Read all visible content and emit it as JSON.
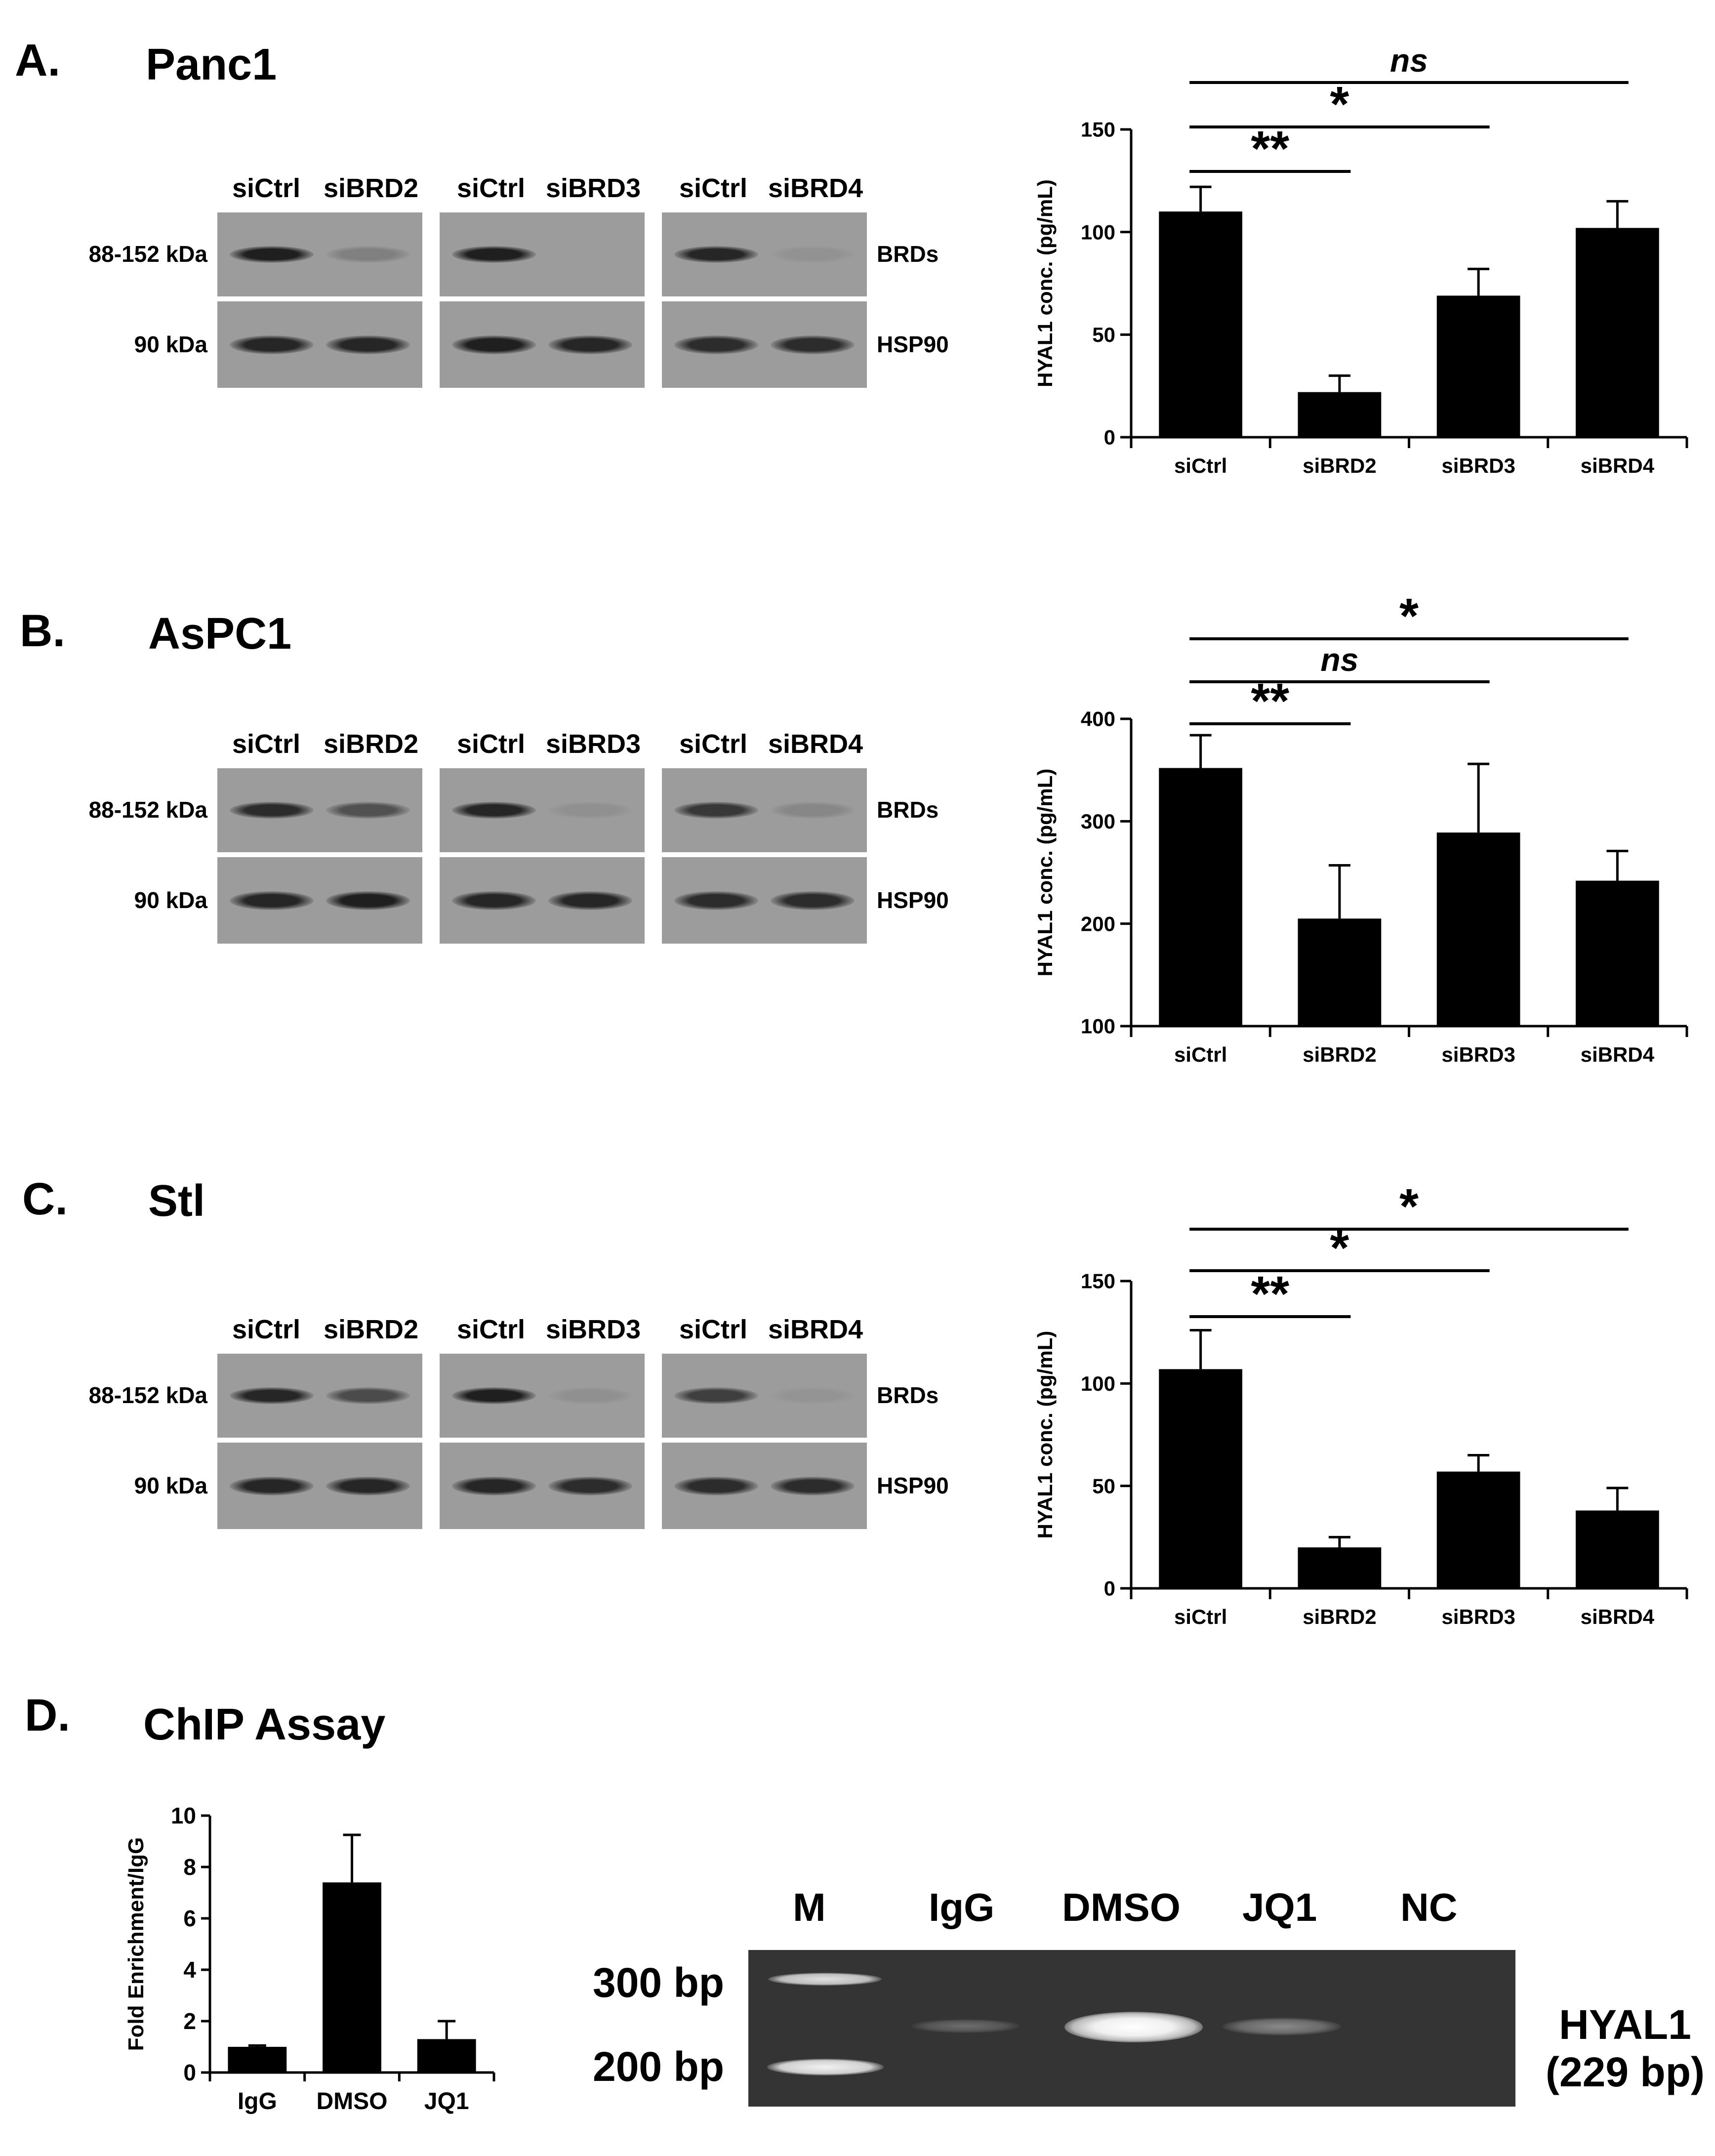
{
  "panels": {
    "A": {
      "label": "A.",
      "title": "Panc1"
    },
    "B": {
      "label": "B.",
      "title": "AsPC1"
    },
    "C": {
      "label": "C.",
      "title": "Stl"
    },
    "D": {
      "label": "D.",
      "title": "ChIP Assay"
    }
  },
  "western": {
    "lanes": [
      "siCtrl",
      "siBRD2",
      "siCtrl",
      "siBRD3",
      "siCtrl",
      "siBRD4"
    ],
    "mw_top": "88-152 kDa",
    "mw_bottom": "90 kDa",
    "protein_top": "BRDs",
    "protein_bottom": "HSP90",
    "band_intensity": {
      "A": {
        "brds": [
          0.95,
          0.18,
          0.95,
          0.0,
          0.9,
          0.03
        ],
        "hsp90": [
          0.9,
          0.9,
          0.95,
          0.9,
          0.85,
          0.85
        ]
      },
      "B": {
        "brds": [
          0.85,
          0.55,
          0.9,
          0.05,
          0.75,
          0.12
        ],
        "hsp90": [
          0.9,
          0.95,
          0.9,
          0.9,
          0.85,
          0.85
        ]
      },
      "C": {
        "brds": [
          0.9,
          0.6,
          0.95,
          0.05,
          0.7,
          0.02
        ],
        "hsp90": [
          0.9,
          0.9,
          0.9,
          0.85,
          0.85,
          0.85
        ]
      }
    }
  },
  "chart_data": [
    {
      "type": "bar",
      "panel": "A",
      "categories": [
        "siCtrl",
        "siBRD2",
        "siBRD3",
        "siBRD4"
      ],
      "values": [
        110,
        22,
        69,
        102
      ],
      "errors": [
        12,
        8,
        13,
        13
      ],
      "ylabel": "HYAL1 conc. (pg/mL)",
      "ylim": [
        0,
        150
      ],
      "yticks": [
        "0",
        "50",
        "100",
        "150"
      ],
      "significance": [
        {
          "from": "siCtrl",
          "to": "siBRD2",
          "label": "**"
        },
        {
          "from": "siCtrl",
          "to": "siBRD3",
          "label": "*"
        },
        {
          "from": "siCtrl",
          "to": "siBRD4",
          "label": "ns"
        }
      ]
    },
    {
      "type": "bar",
      "panel": "B",
      "categories": [
        "siCtrl",
        "siBRD2",
        "siBRD3",
        "siBRD4"
      ],
      "values": [
        352,
        205,
        289,
        242
      ],
      "errors": [
        32,
        52,
        67,
        29
      ],
      "ylabel": "HYAL1 conc. (pg/mL)",
      "ylim": [
        100,
        400
      ],
      "yticks": [
        "100",
        "200",
        "300",
        "400"
      ],
      "significance": [
        {
          "from": "siCtrl",
          "to": "siBRD2",
          "label": "**"
        },
        {
          "from": "siCtrl",
          "to": "siBRD3",
          "label": "ns"
        },
        {
          "from": "siCtrl",
          "to": "siBRD4",
          "label": "*"
        }
      ]
    },
    {
      "type": "bar",
      "panel": "C",
      "categories": [
        "siCtrl",
        "siBRD2",
        "siBRD3",
        "siBRD4"
      ],
      "values": [
        107,
        20,
        57,
        38
      ],
      "errors": [
        19,
        5,
        8,
        11
      ],
      "ylabel": "HYAL1 conc. (pg/mL)",
      "ylim": [
        0,
        150
      ],
      "yticks": [
        "0",
        "50",
        "100",
        "150"
      ],
      "significance": [
        {
          "from": "siCtrl",
          "to": "siBRD2",
          "label": "**"
        },
        {
          "from": "siCtrl",
          "to": "siBRD3",
          "label": "*"
        },
        {
          "from": "siCtrl",
          "to": "siBRD4",
          "label": "*"
        }
      ]
    },
    {
      "type": "bar",
      "panel": "D",
      "categories": [
        "IgG",
        "DMSO",
        "JQ1"
      ],
      "values": [
        1.0,
        7.4,
        1.3
      ],
      "errors": [
        0.05,
        1.85,
        0.7
      ],
      "ylabel": "Fold Enrichment/IgG",
      "ylim": [
        0,
        10
      ],
      "yticks": [
        "0",
        "2",
        "4",
        "6",
        "8",
        "10"
      ]
    }
  ],
  "gel": {
    "lanes": [
      "M",
      "IgG",
      "DMSO",
      "JQ1",
      "NC"
    ],
    "marker_300": "300 bp",
    "marker_200": "200 bp",
    "product_name": "HYAL1",
    "product_size": "(229 bp)"
  }
}
